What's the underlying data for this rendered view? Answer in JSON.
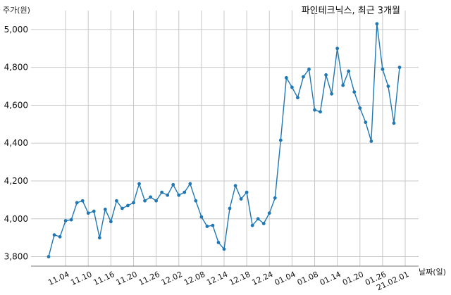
{
  "chart_data": {
    "type": "line",
    "title": "파인테크닉스, 최근 3개월",
    "ylabel": "주가(원)",
    "xlabel": "날짜(일)",
    "ylim": [
      3750,
      5100
    ],
    "yticks": [
      3800,
      4000,
      4200,
      4400,
      4600,
      4800,
      5000
    ],
    "ytick_labels": [
      "3,800",
      "4,000",
      "4,200",
      "4,400",
      "4,600",
      "4,800",
      "5,000"
    ],
    "xtick_labels": [
      "11.04",
      "11.10",
      "11.16",
      "11.20",
      "11.26",
      "12.02",
      "12.08",
      "12.14",
      "12.18",
      "12.24",
      "01.04",
      "01.08",
      "01.14",
      "01.20",
      "01.26",
      "21.02.01"
    ],
    "xtick_positions": [
      3,
      7,
      11,
      15,
      19,
      23,
      27,
      31,
      35,
      39,
      43,
      47,
      51,
      55,
      59,
      63
    ],
    "grid": true,
    "color": "#1f77b4",
    "series": [
      {
        "values": [
          3800,
          3915,
          3905,
          3990,
          3995,
          4085,
          4095,
          4030,
          4040,
          3900,
          4050,
          3985,
          4095,
          4055,
          4070,
          4085,
          4185,
          4095,
          4115,
          4095,
          4140,
          4125,
          4180,
          4125,
          4140,
          4185,
          4095,
          4010,
          3960,
          3965,
          3875,
          3840,
          4055,
          4175,
          4105,
          4140,
          3965,
          4000,
          3975,
          4030,
          4110,
          4415,
          4745,
          4695,
          4640,
          4750,
          4790,
          4575,
          4565,
          4760,
          4660,
          4900,
          4705,
          4780,
          4670,
          4585,
          4510,
          4410,
          5030,
          4790,
          4700,
          4505,
          4800
        ]
      }
    ]
  }
}
